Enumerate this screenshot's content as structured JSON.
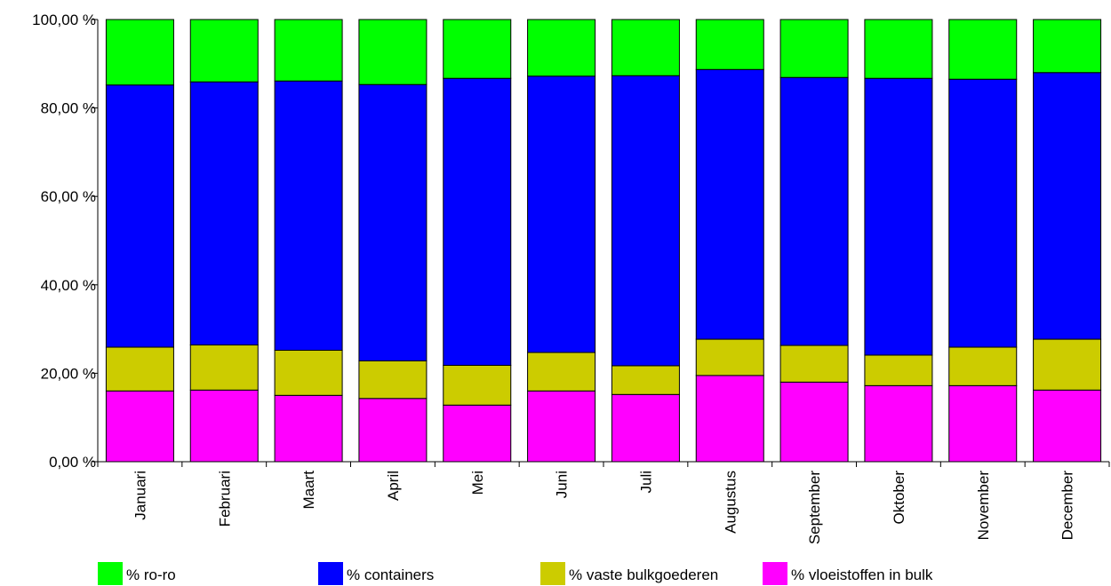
{
  "chart_data": {
    "type": "bar",
    "stacked": true,
    "title": "",
    "xlabel": "",
    "ylabel": "",
    "ylim": [
      0,
      100
    ],
    "yticks": [
      "0,00 %",
      "20,00 %",
      "40,00 %",
      "60,00 %",
      "80,00 %",
      "100,00 %"
    ],
    "categories": [
      "Januari",
      "Februari",
      "Maart",
      "April",
      "Mei",
      "Juni",
      "Juli",
      "Augustus",
      "September",
      "Oktober",
      "November",
      "December"
    ],
    "series": [
      {
        "name": "% vloeistoffen in bulk",
        "color": "#ff00ff",
        "values": [
          16.0,
          16.2,
          15.0,
          14.3,
          12.8,
          16.0,
          15.2,
          19.5,
          18.0,
          17.2,
          17.2,
          16.2
        ]
      },
      {
        "name": "% vaste bulkgoederen",
        "color": "#cccc00",
        "values": [
          9.9,
          10.2,
          10.2,
          8.5,
          9.0,
          8.7,
          6.5,
          8.2,
          8.3,
          6.9,
          8.7,
          11.5
        ]
      },
      {
        "name": "% containers",
        "color": "#0000ff",
        "values": [
          59.3,
          59.5,
          60.9,
          62.5,
          64.9,
          62.5,
          65.6,
          61.0,
          60.6,
          62.6,
          60.6,
          60.3
        ]
      },
      {
        "name": "% ro-ro",
        "color": "#00ff00",
        "values": [
          14.8,
          14.1,
          13.9,
          14.7,
          13.3,
          12.8,
          12.7,
          11.3,
          13.1,
          13.3,
          13.5,
          12.0
        ]
      }
    ],
    "legend": {
      "position": "bottom",
      "order": [
        "% ro-ro",
        "% containers",
        "% vaste bulkgoederen",
        "% vloeistoffen in bulk"
      ]
    },
    "grid": false
  }
}
